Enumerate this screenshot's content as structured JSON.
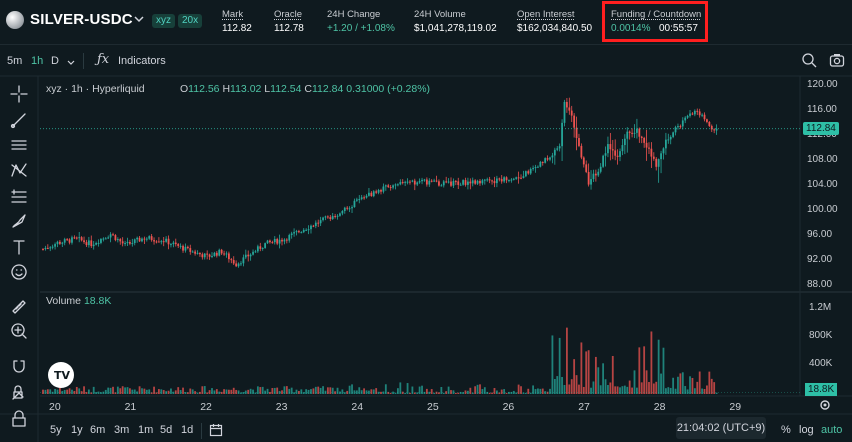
{
  "header": {
    "symbol": "SILVER-USDC",
    "badges": [
      "xyz",
      "20x"
    ],
    "stats": [
      {
        "label": "Mark",
        "value": "112.82"
      },
      {
        "label": "Oracle",
        "value": "112.78"
      },
      {
        "label": "24H Change",
        "value": "+1.20 / +1.08%"
      },
      {
        "label": "24H Volume",
        "value": "$1,041,278,119.02"
      },
      {
        "label": "Open Interest",
        "value": "$162,034,840.50"
      }
    ],
    "funding_label": "Funding / Countdown",
    "funding_rate": "0.0014%",
    "countdown": "00:55:57",
    "highlight_color": "#ff1f1f"
  },
  "toolbar": {
    "timeframes": [
      "5m",
      "1h",
      "D"
    ],
    "active_timeframe": "1h",
    "indicators_label": "Indicators"
  },
  "sidebar_icons": [
    "crosshair-icon",
    "trend-line-icon",
    "horizontal-lines-icon",
    "pattern-icon",
    "fib-icon",
    "brush-icon",
    "text-icon",
    "emoji-icon",
    "ruler-icon",
    "zoom-in-icon",
    "magnet-icon",
    "lock-drawing-icon",
    "lock-icon"
  ],
  "legend": {
    "source": "xyz · 1h · Hyperliquid",
    "o_label": "O",
    "o": "112.56",
    "h_label": "H",
    "h": "113.02",
    "l_label": "L",
    "l": "112.54",
    "c_label": "C",
    "c": "112.84",
    "change": "0.31000 (+0.28%)"
  },
  "volume_legend": {
    "label": "Volume",
    "value": "18.8K"
  },
  "price_axis": [
    "120.00",
    "116.00",
    "112.00",
    "108.00",
    "104.00",
    "100.00",
    "96.00",
    "92.00",
    "88.00"
  ],
  "current_price_label": "112.84",
  "volume_axis": [
    "1.2M",
    "800K",
    "400K"
  ],
  "current_volume_label": "18.8K",
  "time_axis": [
    "20",
    "21",
    "22",
    "23",
    "24",
    "25",
    "26",
    "27",
    "28",
    "29"
  ],
  "range_buttons": [
    "5y",
    "1y",
    "6m",
    "3m",
    "1m",
    "5d",
    "1d"
  ],
  "time_readout": "21:04:02 (UTC+9)",
  "axis_options": {
    "percent": "%",
    "log": "log",
    "auto": "auto"
  },
  "colors": {
    "up": "#26a69a",
    "down": "#ef5350",
    "accent": "#4ec3a5",
    "background": "#0f1a1f"
  },
  "chart_data": {
    "type": "candlestick",
    "interval": "1h",
    "y_range": [
      88,
      120
    ],
    "volume_range": [
      0,
      1200000
    ],
    "days": [
      "20",
      "21",
      "22",
      "23",
      "24",
      "25",
      "26",
      "27",
      "28",
      "29"
    ],
    "close_path": [
      [
        0,
        93.6
      ],
      [
        6,
        94.6
      ],
      [
        14,
        95.2
      ],
      [
        20,
        94.4
      ],
      [
        28,
        96.0
      ],
      [
        34,
        94.2
      ],
      [
        42,
        95.4
      ],
      [
        50,
        95.0
      ],
      [
        60,
        93.4
      ],
      [
        68,
        92.4
      ],
      [
        74,
        93.2
      ],
      [
        80,
        91.2
      ],
      [
        86,
        92.8
      ],
      [
        92,
        94.4
      ],
      [
        100,
        95.2
      ],
      [
        108,
        96.8
      ],
      [
        116,
        98.2
      ],
      [
        124,
        99.6
      ],
      [
        130,
        101.2
      ],
      [
        136,
        102.4
      ],
      [
        142,
        103.6
      ],
      [
        150,
        104.0
      ],
      [
        158,
        104.4
      ],
      [
        166,
        104.0
      ],
      [
        174,
        104.2
      ],
      [
        182,
        104.6
      ],
      [
        186,
        104.2
      ],
      [
        190,
        104.8
      ],
      [
        196,
        105.0
      ],
      [
        204,
        106.6
      ],
      [
        210,
        108.4
      ],
      [
        214,
        110.0
      ],
      [
        216,
        117.2
      ],
      [
        219,
        115.0
      ],
      [
        222,
        110.0
      ],
      [
        226,
        104.2
      ],
      [
        230,
        106.2
      ],
      [
        234,
        110.0
      ],
      [
        238,
        108.0
      ],
      [
        242,
        112.0
      ],
      [
        246,
        112.6
      ],
      [
        250,
        110.0
      ],
      [
        254,
        107.0
      ],
      [
        258,
        110.8
      ],
      [
        262,
        112.8
      ],
      [
        266,
        114.2
      ],
      [
        270,
        115.8
      ],
      [
        274,
        114.4
      ],
      [
        278,
        112.6
      ]
    ],
    "last": {
      "open": 112.56,
      "high": 113.02,
      "low": 112.54,
      "close": 112.84,
      "volume": "18.8K"
    }
  }
}
